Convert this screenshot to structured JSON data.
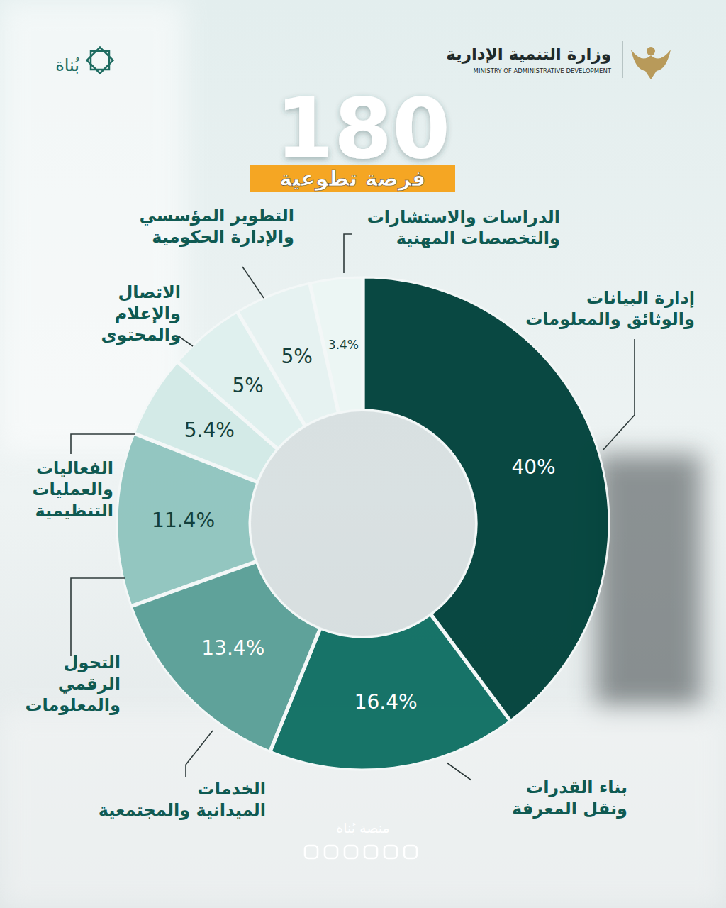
{
  "page": {
    "ministry_ar": "وزارة التنمية الإدارية",
    "ministry_en": "MINISTRY OF ADMINISTRATIVE DEVELOPMENT",
    "brand": "بُناة",
    "footer": "منصة بُناة"
  },
  "chart_data": {
    "type": "donut",
    "title": "180",
    "subtitle": "فرصة تطوعية",
    "categories": [
      "إدارة البيانات\nوالوثائق والمعلومات",
      "بناء القدرات\nونقل المعرفة",
      "الخدمات\nالميدانية والمجتمعية",
      "التحول\nالرقمي\nوالمعلومات",
      "الفعاليات\nوالعمليات\nالتنظيمية",
      "الاتصال\nوالإعلام\nوالمحتوى",
      "التطوير المؤسسي\nوالإدارة الحكومية",
      "الدراسات والاستشارات\nوالتخصصات المهنية"
    ],
    "values": [
      40,
      16.4,
      13.4,
      11.4,
      5.4,
      5,
      5,
      3.4
    ],
    "value_labels": [
      "40%",
      "16.4%",
      "13.4%",
      "11.4%",
      "5.4%",
      "5%",
      "5%",
      "3.4%"
    ],
    "colors": [
      "#00423b",
      "#0f6f63",
      "#5a9f97",
      "#90c5bf",
      "#d2eae7",
      "#dff0ee",
      "#e6f3f1",
      "#edf7f5"
    ],
    "data_labels": true
  }
}
